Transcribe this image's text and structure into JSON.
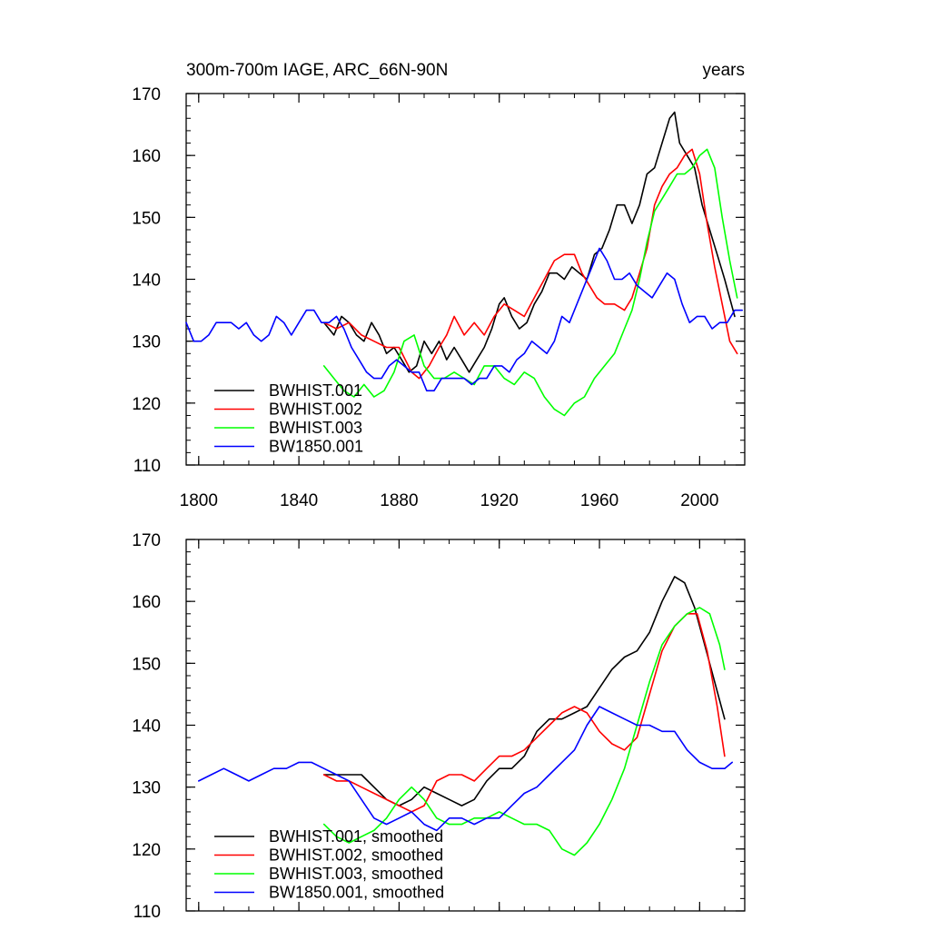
{
  "chart_data": [
    {
      "type": "line",
      "title": "300m-700m IAGE, ARC_66N-90N",
      "units": "years",
      "xlim": [
        1795,
        2018
      ],
      "ylim": [
        110,
        170
      ],
      "xticks": [
        1800,
        1840,
        1880,
        1920,
        1960,
        2000
      ],
      "yticks": [
        110,
        120,
        130,
        140,
        150,
        160,
        170
      ],
      "show_x_tick_labels": true,
      "legend_position": "bottom-left",
      "series": [
        {
          "name": "BWHIST.001",
          "color": "#000000",
          "x": [
            1850,
            1854,
            1857,
            1860,
            1863,
            1866,
            1869,
            1872,
            1875,
            1878,
            1881,
            1884,
            1887,
            1890,
            1893,
            1896,
            1899,
            1902,
            1905,
            1908,
            1911,
            1914,
            1917,
            1920,
            1922,
            1925,
            1928,
            1931,
            1934,
            1937,
            1940,
            1943,
            1946,
            1949,
            1952,
            1955,
            1958,
            1961,
            1964,
            1967,
            1970,
            1973,
            1976,
            1979,
            1982,
            1985,
            1988,
            1990,
            1992,
            1995,
            1998,
            2001,
            2004,
            2007,
            2010,
            2014
          ],
          "y": [
            133,
            131,
            134,
            133,
            131,
            130,
            133,
            131,
            128,
            129,
            127,
            125,
            126,
            130,
            128,
            130,
            127,
            129,
            127,
            125,
            127,
            129,
            132,
            136,
            137,
            134,
            132,
            133,
            136,
            138,
            141,
            141,
            140,
            142,
            141,
            140,
            144,
            145,
            148,
            152,
            152,
            149,
            152,
            157,
            158,
            162,
            166,
            167,
            162,
            160,
            158,
            152,
            148,
            144,
            140,
            134
          ]
        },
        {
          "name": "BWHIST.002",
          "color": "#ff0000",
          "x": [
            1850,
            1855,
            1860,
            1865,
            1870,
            1875,
            1880,
            1885,
            1888,
            1892,
            1896,
            1899,
            1902,
            1906,
            1910,
            1914,
            1918,
            1922,
            1926,
            1930,
            1934,
            1938,
            1942,
            1946,
            1950,
            1953,
            1956,
            1959,
            1962,
            1966,
            1970,
            1973,
            1976,
            1979,
            1982,
            1985,
            1988,
            1991,
            1994,
            1997,
            2000,
            2003,
            2006,
            2009,
            2012,
            2015
          ],
          "y": [
            133,
            132,
            133,
            131,
            130,
            129,
            129,
            125,
            124,
            126,
            129,
            131,
            134,
            131,
            133,
            131,
            134,
            136,
            135,
            134,
            137,
            140,
            143,
            144,
            144,
            141,
            139,
            137,
            136,
            136,
            135,
            137,
            141,
            145,
            152,
            155,
            157,
            158,
            160,
            161,
            157,
            149,
            142,
            136,
            130,
            128
          ]
        },
        {
          "name": "BWHIST.003",
          "color": "#00ff00",
          "x": [
            1850,
            1854,
            1858,
            1862,
            1866,
            1870,
            1874,
            1878,
            1882,
            1886,
            1890,
            1894,
            1898,
            1902,
            1906,
            1910,
            1914,
            1918,
            1922,
            1926,
            1930,
            1934,
            1938,
            1942,
            1946,
            1950,
            1954,
            1958,
            1962,
            1966,
            1970,
            1973,
            1976,
            1979,
            1982,
            1985,
            1988,
            1991,
            1994,
            1997,
            2000,
            2003,
            2006,
            2009,
            2012,
            2015
          ],
          "y": [
            126,
            124,
            122,
            121,
            123,
            121,
            122,
            125,
            130,
            131,
            126,
            124,
            124,
            125,
            124,
            123,
            126,
            126,
            124,
            123,
            125,
            124,
            121,
            119,
            118,
            120,
            121,
            124,
            126,
            128,
            132,
            135,
            140,
            146,
            151,
            153,
            155,
            157,
            157,
            158,
            160,
            161,
            158,
            150,
            143,
            137
          ]
        },
        {
          "name": "BW1850.001",
          "color": "#0000ff",
          "x": [
            1795,
            1798,
            1801,
            1804,
            1807,
            1810,
            1813,
            1816,
            1819,
            1822,
            1825,
            1828,
            1831,
            1834,
            1837,
            1840,
            1843,
            1846,
            1849,
            1852,
            1855,
            1858,
            1861,
            1864,
            1867,
            1870,
            1873,
            1876,
            1879,
            1882,
            1885,
            1888,
            1891,
            1894,
            1897,
            1900,
            1903,
            1906,
            1909,
            1912,
            1915,
            1918,
            1921,
            1924,
            1927,
            1930,
            1933,
            1936,
            1939,
            1942,
            1945,
            1948,
            1951,
            1954,
            1957,
            1960,
            1963,
            1966,
            1969,
            1972,
            1975,
            1978,
            1981,
            1984,
            1987,
            1990,
            1993,
            1996,
            1999,
            2002,
            2005,
            2008,
            2011,
            2014,
            2017
          ],
          "y": [
            133,
            130,
            130,
            131,
            133,
            133,
            133,
            132,
            133,
            131,
            130,
            131,
            134,
            133,
            131,
            133,
            135,
            135,
            133,
            133,
            134,
            132,
            129,
            127,
            125,
            124,
            124,
            126,
            127,
            126,
            125,
            125,
            122,
            122,
            124,
            124,
            124,
            124,
            123,
            124,
            124,
            126,
            126,
            125,
            127,
            128,
            130,
            129,
            128,
            130,
            134,
            133,
            136,
            139,
            142,
            145,
            143,
            140,
            140,
            141,
            139,
            138,
            137,
            139,
            141,
            140,
            136,
            133,
            134,
            134,
            132,
            133,
            133,
            135,
            135
          ]
        }
      ]
    },
    {
      "type": "line",
      "title": "",
      "units": "",
      "xlim": [
        1795,
        2018
      ],
      "ylim": [
        110,
        170
      ],
      "xticks": [
        1800,
        1840,
        1880,
        1920,
        1960,
        2000
      ],
      "yticks": [
        110,
        120,
        130,
        140,
        150,
        160,
        170
      ],
      "show_x_tick_labels": false,
      "legend_position": "bottom-left",
      "series": [
        {
          "name": "BWHIST.001, smoothed",
          "color": "#000000",
          "x": [
            1850,
            1855,
            1860,
            1865,
            1870,
            1875,
            1880,
            1885,
            1890,
            1895,
            1900,
            1905,
            1910,
            1915,
            1920,
            1925,
            1930,
            1935,
            1940,
            1945,
            1950,
            1955,
            1960,
            1965,
            1970,
            1975,
            1980,
            1985,
            1990,
            1994,
            1998,
            2002,
            2006,
            2010
          ],
          "y": [
            132,
            132,
            132,
            132,
            130,
            128,
            127,
            128,
            130,
            129,
            128,
            127,
            128,
            131,
            133,
            133,
            135,
            139,
            141,
            141,
            142,
            143,
            146,
            149,
            151,
            152,
            155,
            160,
            164,
            163,
            159,
            153,
            147,
            141
          ]
        },
        {
          "name": "BWHIST.002, smoothed",
          "color": "#ff0000",
          "x": [
            1850,
            1855,
            1860,
            1865,
            1870,
            1875,
            1880,
            1885,
            1890,
            1895,
            1900,
            1905,
            1910,
            1915,
            1920,
            1925,
            1930,
            1935,
            1940,
            1945,
            1950,
            1955,
            1960,
            1965,
            1970,
            1975,
            1980,
            1985,
            1990,
            1995,
            1999,
            2003,
            2007,
            2010
          ],
          "y": [
            132,
            131,
            131,
            130,
            129,
            128,
            127,
            126,
            127,
            131,
            132,
            132,
            131,
            133,
            135,
            135,
            136,
            138,
            140,
            142,
            143,
            142,
            139,
            137,
            136,
            138,
            145,
            152,
            156,
            158,
            158,
            152,
            143,
            135
          ]
        },
        {
          "name": "BWHIST.003, smoothed",
          "color": "#00ff00",
          "x": [
            1850,
            1855,
            1860,
            1865,
            1870,
            1875,
            1880,
            1885,
            1890,
            1895,
            1900,
            1905,
            1910,
            1915,
            1920,
            1925,
            1930,
            1935,
            1940,
            1945,
            1950,
            1955,
            1960,
            1965,
            1970,
            1975,
            1980,
            1985,
            1990,
            1995,
            2000,
            2004,
            2008,
            2010
          ],
          "y": [
            124,
            122,
            121,
            122,
            123,
            125,
            128,
            130,
            128,
            125,
            124,
            124,
            125,
            125,
            126,
            125,
            124,
            124,
            123,
            120,
            119,
            121,
            124,
            128,
            133,
            140,
            147,
            153,
            156,
            158,
            159,
            158,
            153,
            149
          ]
        },
        {
          "name": "BW1850.001, smoothed",
          "color": "#0000ff",
          "x": [
            1800,
            1805,
            1810,
            1815,
            1820,
            1825,
            1830,
            1835,
            1840,
            1845,
            1850,
            1855,
            1860,
            1865,
            1870,
            1875,
            1880,
            1885,
            1890,
            1895,
            1900,
            1905,
            1910,
            1915,
            1920,
            1925,
            1930,
            1935,
            1940,
            1945,
            1950,
            1955,
            1960,
            1965,
            1970,
            1975,
            1980,
            1985,
            1990,
            1995,
            2000,
            2005,
            2010,
            2013
          ],
          "y": [
            131,
            132,
            133,
            132,
            131,
            132,
            133,
            133,
            134,
            134,
            133,
            132,
            131,
            128,
            125,
            124,
            125,
            126,
            124,
            123,
            125,
            125,
            124,
            125,
            125,
            127,
            129,
            130,
            132,
            134,
            136,
            140,
            143,
            142,
            141,
            140,
            140,
            139,
            139,
            136,
            134,
            133,
            133,
            134
          ]
        }
      ]
    }
  ]
}
